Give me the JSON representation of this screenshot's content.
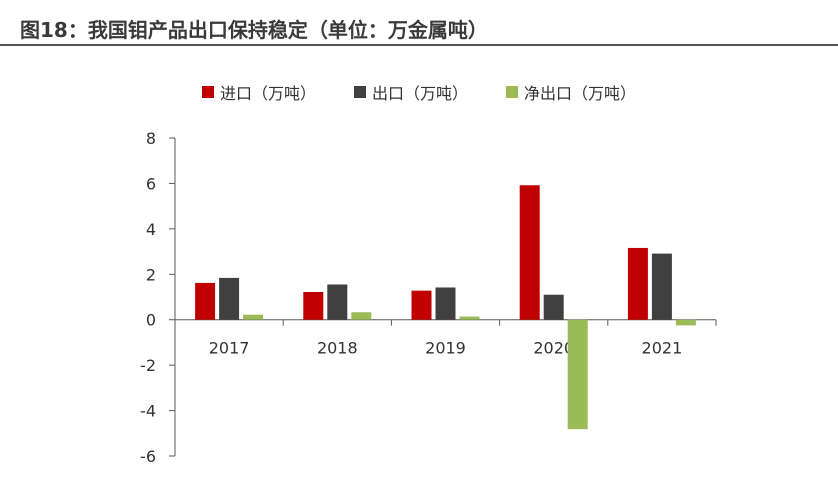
{
  "title": "图18：我国钼产品出口保持稳定（单位：万金属吨）",
  "legend_position": "top-center",
  "colors": {
    "import": "#C00000",
    "export": "#404040",
    "net": "#9BBB59",
    "axis": "#595959"
  },
  "chart_data": {
    "type": "bar",
    "title": "图18：我国钼产品出口保持稳定（单位：万金属吨）",
    "categories": [
      "2017",
      "2018",
      "2019",
      "2020",
      "2021"
    ],
    "series": [
      {
        "name": "进口（万吨）",
        "values": [
          1.62,
          1.22,
          1.28,
          5.92,
          3.16
        ]
      },
      {
        "name": "出口（万吨）",
        "values": [
          1.84,
          1.55,
          1.42,
          1.1,
          2.91
        ]
      },
      {
        "name": "净出口（万吨）",
        "values": [
          0.22,
          0.33,
          0.14,
          -4.82,
          -0.25
        ]
      }
    ],
    "yticks": [
      "8",
      "6",
      "4",
      "2",
      "0",
      "-2",
      "-4",
      "-6"
    ],
    "ylim": [
      -6,
      8
    ],
    "grid": false,
    "xlabel": "",
    "ylabel": ""
  }
}
